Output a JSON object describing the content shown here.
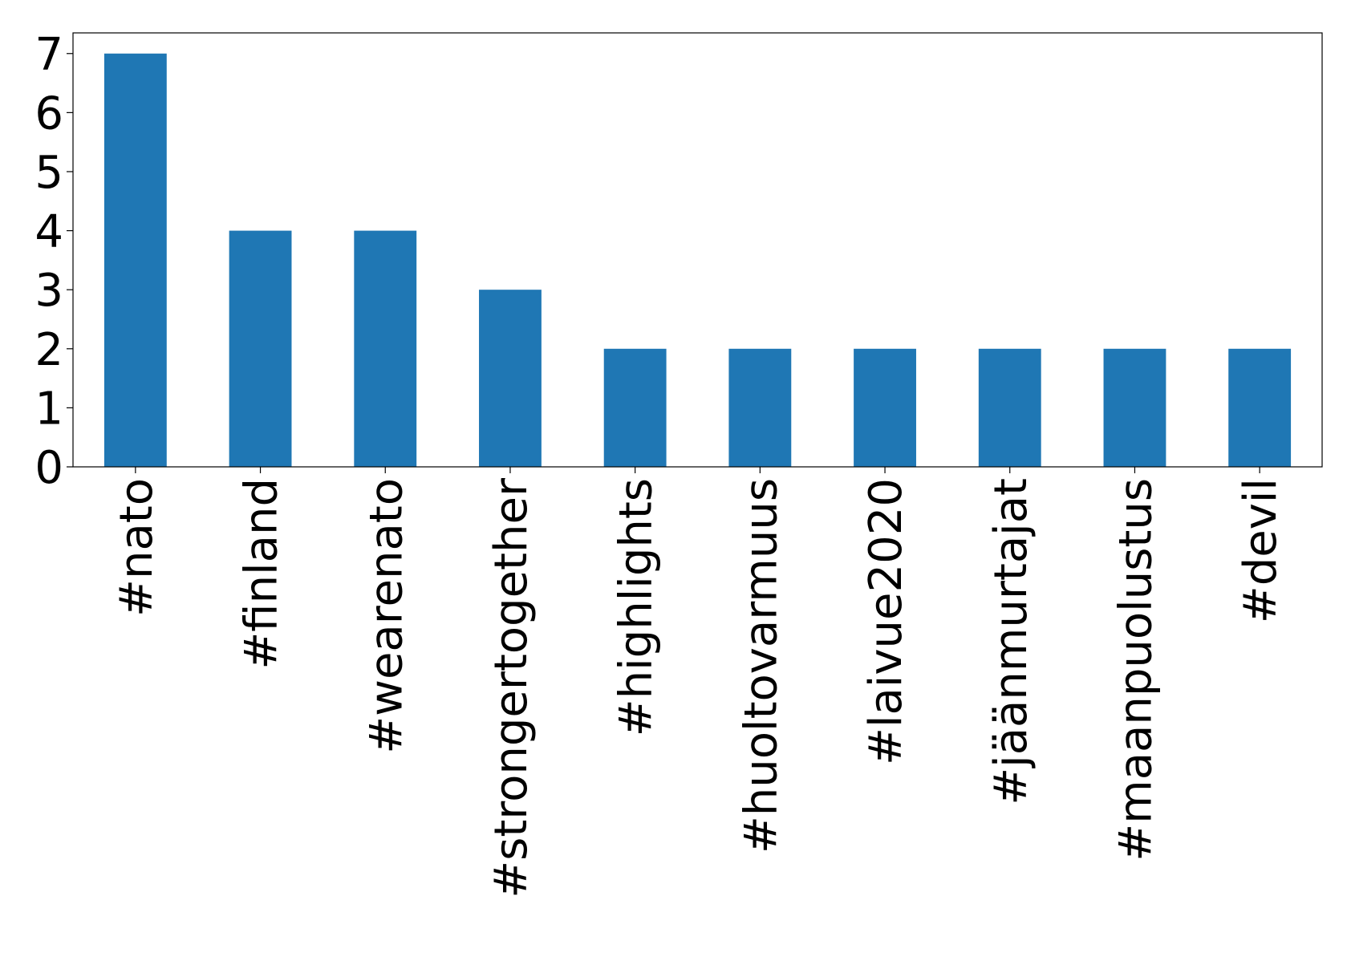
{
  "chart_data": {
    "type": "bar",
    "categories": [
      "#nato",
      "#finland",
      "#wearenato",
      "#strongertogether",
      "#highlights",
      "#huoltovarmuus",
      "#laivue2020",
      "#jäänmurtajat",
      "#maanpuolustus",
      "#devil"
    ],
    "values": [
      7,
      4,
      4,
      3,
      2,
      2,
      2,
      2,
      2,
      2
    ],
    "color": "#1f77b4",
    "ylim": [
      0,
      7.35
    ],
    "yticks": [
      0,
      1,
      2,
      3,
      4,
      5,
      6,
      7
    ],
    "grid": false
  }
}
